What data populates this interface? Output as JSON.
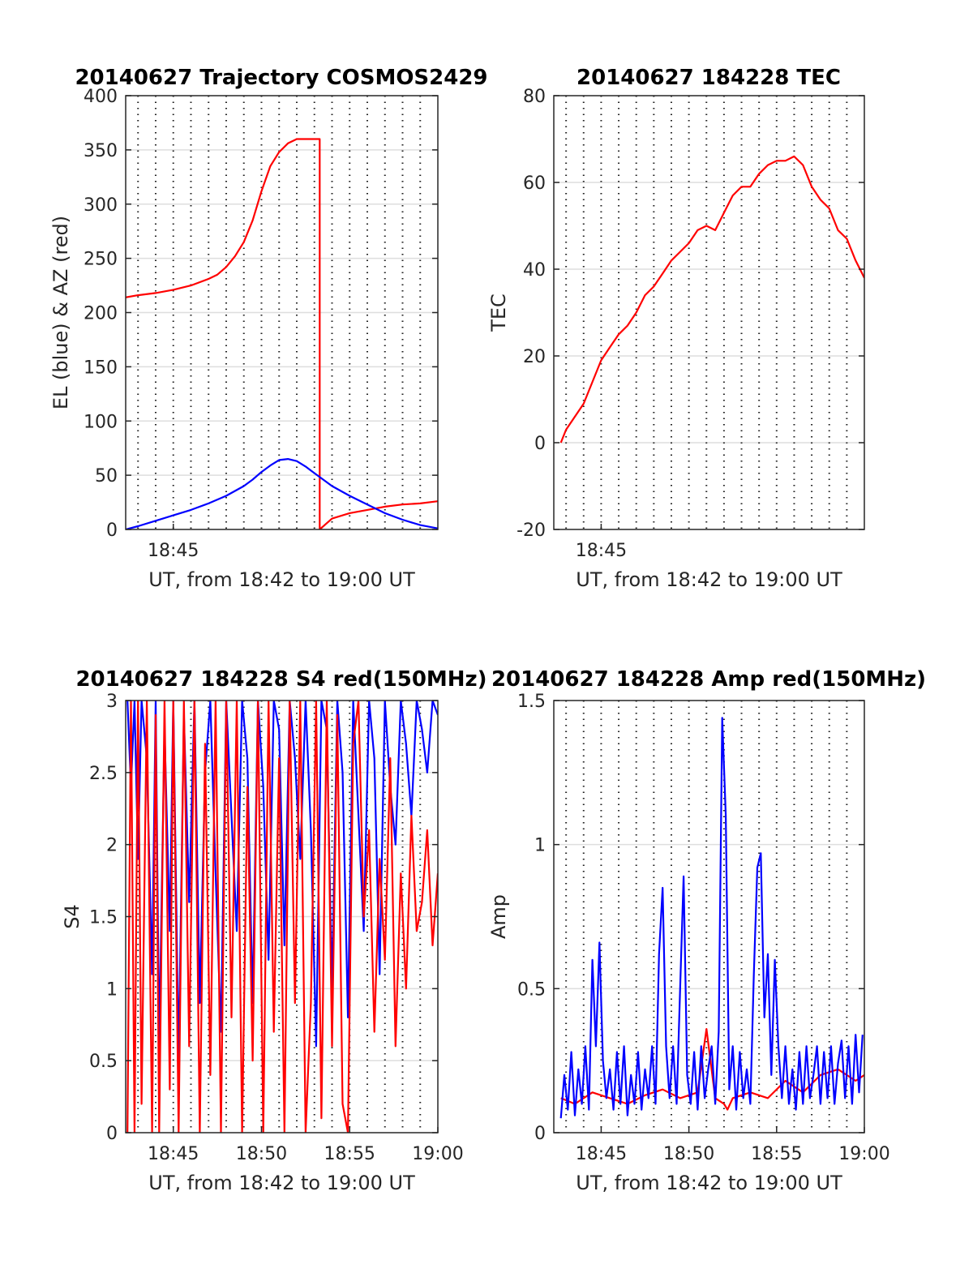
{
  "chart_data": [
    {
      "type": "line",
      "title": "20140627 Trajectory COSMOS2429",
      "xlabel": "UT, from 18:42 to 19:00 UT",
      "ylabel": "EL (blue) & AZ (red)",
      "xlim_minutes": [
        42.3,
        60
      ],
      "ylim": [
        0,
        400
      ],
      "yticks": [
        0,
        50,
        100,
        150,
        200,
        250,
        300,
        350,
        400
      ],
      "xticks": [
        {
          "value": 45,
          "label": "18:45"
        }
      ],
      "vgrid_minutes": [
        43,
        44,
        45,
        46,
        47,
        48,
        49,
        50,
        51,
        52,
        53,
        54,
        55,
        56,
        57,
        58,
        59
      ],
      "grid": true,
      "series": [
        {
          "color": "#ff0000",
          "x": [
            42.3,
            43,
            44,
            45,
            46,
            47,
            47.5,
            48,
            48.5,
            49,
            49.5,
            50,
            50.5,
            51,
            51.5,
            52,
            52.5,
            53,
            53.3,
            53.3,
            54,
            55,
            56,
            57,
            58,
            59,
            60
          ],
          "values": [
            214,
            216,
            218,
            221,
            225,
            231,
            235,
            242,
            252,
            265,
            285,
            312,
            335,
            348,
            356,
            360,
            360,
            360,
            360,
            0,
            10,
            15,
            18,
            21,
            23,
            24,
            26
          ]
        },
        {
          "color": "#0000ff",
          "x": [
            42.3,
            43,
            44,
            45,
            46,
            47,
            48,
            49,
            49.5,
            50,
            50.5,
            51,
            51.5,
            52,
            52.5,
            53,
            53.5,
            54,
            55,
            56,
            57,
            58,
            59,
            60
          ],
          "values": [
            0,
            3,
            8,
            13,
            18,
            24,
            31,
            40,
            46,
            53,
            59,
            64,
            65,
            63,
            58,
            52,
            46,
            40,
            31,
            23,
            15,
            9,
            4,
            1
          ]
        }
      ]
    },
    {
      "type": "line",
      "title": "20140627 184228 TEC",
      "xlabel": "UT, from 18:42 to 19:00 UT",
      "ylabel": "TEC",
      "xlim_minutes": [
        42.3,
        60
      ],
      "ylim": [
        -20,
        80
      ],
      "yticks": [
        -20,
        0,
        20,
        40,
        60,
        80
      ],
      "xticks": [
        {
          "value": 45,
          "label": "18:45"
        }
      ],
      "vgrid_minutes": [
        43,
        44,
        45,
        46,
        47,
        48,
        49,
        50,
        51,
        52,
        53,
        54,
        55,
        56,
        57,
        58,
        59
      ],
      "grid": true,
      "series": [
        {
          "color": "#ff0000",
          "x": [
            42.7,
            43,
            43.5,
            44,
            44.5,
            45,
            45.5,
            46,
            46.5,
            47,
            47.5,
            48,
            48.5,
            49,
            49.5,
            50,
            50.5,
            51,
            51.5,
            52,
            52.5,
            53,
            53.5,
            54,
            54.5,
            55,
            55.5,
            56,
            56.5,
            57,
            57.5,
            58,
            58.5,
            59,
            59.5,
            60
          ],
          "values": [
            0,
            3,
            6,
            9,
            14,
            19,
            22,
            25,
            27,
            30,
            34,
            36,
            39,
            42,
            44,
            46,
            49,
            50,
            49,
            53,
            57,
            59,
            59,
            62,
            64,
            65,
            65,
            66,
            64,
            59,
            56,
            54,
            49,
            47,
            42,
            38
          ]
        }
      ]
    },
    {
      "type": "line",
      "title": "20140627 184228 S4 red(150MHz)",
      "xlabel": "UT, from 18:42 to 19:00 UT",
      "ylabel": "S4",
      "xlim_minutes": [
        42.3,
        60
      ],
      "ylim": [
        0,
        3
      ],
      "yticks": [
        0,
        0.5,
        1,
        1.5,
        2,
        2.5,
        3
      ],
      "ytick_labels": [
        "0",
        "0.5",
        "1",
        "1.5",
        "2",
        "2.5",
        "3"
      ],
      "xticks": [
        {
          "value": 45,
          "label": "18:45"
        },
        {
          "value": 50,
          "label": "18:50"
        },
        {
          "value": 55,
          "label": "18:55"
        },
        {
          "value": 60,
          "label": "19:00"
        }
      ],
      "vgrid_minutes": [
        43,
        44,
        45,
        46,
        47,
        48,
        49,
        50,
        51,
        52,
        53,
        54,
        55,
        56,
        57,
        58,
        59
      ],
      "grid": true,
      "series": [
        {
          "color": "#0000ff",
          "x": [
            42.4,
            42.6,
            42.8,
            43.0,
            43.2,
            43.5,
            43.8,
            44.0,
            44.2,
            44.5,
            44.8,
            45.0,
            45.3,
            45.6,
            45.9,
            46.2,
            46.5,
            46.8,
            47.1,
            47.4,
            47.7,
            48.0,
            48.3,
            48.6,
            48.9,
            49.2,
            49.5,
            49.8,
            50.1,
            50.4,
            50.7,
            51.0,
            51.3,
            51.6,
            51.9,
            52.2,
            52.5,
            52.8,
            53.1,
            53.4,
            53.7,
            54.0,
            54.3,
            54.6,
            54.9,
            55.2,
            55.5,
            55.8,
            56.1,
            56.4,
            56.7,
            57.0,
            57.3,
            57.6,
            57.9,
            58.2,
            58.5,
            58.8,
            59.1,
            59.4,
            59.7,
            60.0
          ],
          "values": [
            3,
            2.4,
            3,
            1.9,
            3,
            2.6,
            1.1,
            3,
            0.6,
            2.8,
            1.4,
            3,
            0.5,
            2.9,
            1.6,
            3,
            0.9,
            2.5,
            3,
            1.8,
            0.7,
            3,
            2.2,
            1.4,
            3,
            2.6,
            0.9,
            3,
            2.4,
            1.2,
            3,
            2.8,
            1.3,
            3,
            2.6,
            1.9,
            3,
            2.1,
            0.6,
            3,
            2.8,
            1.0,
            3,
            2.5,
            0.8,
            3,
            2.2,
            1.4,
            3,
            2.6,
            1.1,
            3,
            2.4,
            2.0,
            3,
            2.7,
            2.2,
            3,
            2.8,
            2.5,
            3,
            2.9
          ]
        },
        {
          "color": "#ff0000",
          "x": [
            42.4,
            42.6,
            42.8,
            43.0,
            43.2,
            43.5,
            43.8,
            44.0,
            44.2,
            44.5,
            44.8,
            45.0,
            45.3,
            45.6,
            45.9,
            46.2,
            46.5,
            46.8,
            47.1,
            47.4,
            47.7,
            48.0,
            48.3,
            48.6,
            48.9,
            49.2,
            49.5,
            49.8,
            50.1,
            50.4,
            50.7,
            51.0,
            51.3,
            51.6,
            51.9,
            52.2,
            52.5,
            52.8,
            53.1,
            53.4,
            53.7,
            54.0,
            54.3,
            54.6,
            54.9,
            55.2,
            55.5,
            55.8,
            56.1,
            56.4,
            56.7,
            57.0,
            57.3,
            57.6,
            57.9,
            58.2,
            58.5,
            58.8,
            59.1,
            59.4,
            59.7,
            60.0
          ],
          "values": [
            0,
            3,
            0,
            3,
            0.2,
            3,
            0,
            2.9,
            0,
            3,
            0.3,
            3,
            0,
            3,
            0.6,
            3,
            0,
            2.7,
            0.4,
            3,
            0,
            3,
            0.8,
            3,
            0,
            2.4,
            0.5,
            3,
            0,
            3,
            0.7,
            2.6,
            0,
            3,
            0.9,
            3,
            0,
            0.9,
            3,
            0.1,
            3,
            0.6,
            2.9,
            0.2,
            0,
            2.7,
            3,
            1.5,
            2.1,
            0.7,
            1.9,
            1.2,
            2.6,
            0.6,
            1.8,
            1.0,
            2.2,
            1.4,
            1.6,
            2.1,
            1.3,
            1.8
          ]
        }
      ]
    },
    {
      "type": "line",
      "title": "20140627 184228 Amp red(150MHz)",
      "xlabel": "UT, from 18:42 to 19:00 UT",
      "ylabel": "Amp",
      "xlim_minutes": [
        42.3,
        60
      ],
      "ylim": [
        0,
        1.5
      ],
      "yticks": [
        0,
        0.5,
        1,
        1.5
      ],
      "ytick_labels": [
        "0",
        "0.5",
        "1",
        "1.5"
      ],
      "xticks": [
        {
          "value": 45,
          "label": "18:45"
        },
        {
          "value": 50,
          "label": "18:50"
        },
        {
          "value": 55,
          "label": "18:55"
        },
        {
          "value": 60,
          "label": "19:00"
        }
      ],
      "vgrid_minutes": [
        43,
        44,
        45,
        46,
        47,
        48,
        49,
        50,
        51,
        52,
        53,
        54,
        55,
        56,
        57,
        58,
        59
      ],
      "grid": true,
      "series": [
        {
          "color": "#ff0000",
          "x": [
            42.7,
            43.5,
            44.5,
            45.5,
            46.5,
            47.5,
            48.5,
            49.5,
            50.5,
            51.0,
            51.5,
            52.0,
            52.2,
            52.5,
            53.5,
            54.5,
            55.5,
            56.5,
            57.5,
            58.5,
            59.5,
            60.0
          ],
          "values": [
            0.12,
            0.1,
            0.14,
            0.12,
            0.1,
            0.13,
            0.15,
            0.12,
            0.14,
            0.36,
            0.12,
            0.1,
            0.08,
            0.12,
            0.14,
            0.12,
            0.18,
            0.14,
            0.2,
            0.22,
            0.18,
            0.2
          ]
        },
        {
          "color": "#0000ff",
          "x": [
            42.7,
            42.9,
            43.1,
            43.3,
            43.5,
            43.7,
            43.9,
            44.1,
            44.3,
            44.5,
            44.7,
            44.9,
            45.1,
            45.3,
            45.5,
            45.7,
            45.9,
            46.1,
            46.3,
            46.5,
            46.7,
            46.9,
            47.1,
            47.3,
            47.5,
            47.7,
            47.9,
            48.1,
            48.3,
            48.5,
            48.7,
            48.9,
            49.1,
            49.3,
            49.5,
            49.7,
            49.9,
            50.1,
            50.3,
            50.5,
            50.7,
            50.9,
            51.1,
            51.3,
            51.5,
            51.7,
            51.9,
            52.1,
            52.3,
            52.5,
            52.7,
            52.9,
            53.1,
            53.3,
            53.5,
            53.7,
            53.9,
            54.1,
            54.3,
            54.5,
            54.7,
            54.9,
            55.1,
            55.3,
            55.5,
            55.7,
            55.9,
            56.1,
            56.3,
            56.5,
            56.7,
            56.9,
            57.1,
            57.3,
            57.5,
            57.7,
            57.9,
            58.1,
            58.3,
            58.5,
            58.7,
            58.9,
            59.1,
            59.3,
            59.5,
            59.7,
            59.9
          ],
          "values": [
            0.05,
            0.2,
            0.08,
            0.28,
            0.06,
            0.22,
            0.1,
            0.3,
            0.08,
            0.6,
            0.3,
            0.66,
            0.25,
            0.12,
            0.22,
            0.08,
            0.28,
            0.1,
            0.3,
            0.06,
            0.2,
            0.1,
            0.28,
            0.08,
            0.22,
            0.12,
            0.3,
            0.1,
            0.62,
            0.85,
            0.3,
            0.12,
            0.3,
            0.1,
            0.5,
            0.89,
            0.2,
            0.1,
            0.28,
            0.08,
            0.3,
            0.12,
            0.22,
            0.3,
            0.1,
            0.35,
            1.44,
            1.1,
            0.15,
            0.3,
            0.08,
            0.28,
            0.12,
            0.22,
            0.1,
            0.55,
            0.92,
            0.97,
            0.4,
            0.62,
            0.2,
            0.6,
            0.3,
            0.12,
            0.3,
            0.1,
            0.22,
            0.08,
            0.28,
            0.1,
            0.3,
            0.12,
            0.2,
            0.3,
            0.1,
            0.28,
            0.12,
            0.3,
            0.1,
            0.24,
            0.32,
            0.12,
            0.3,
            0.1,
            0.34,
            0.14,
            0.34
          ]
        }
      ]
    }
  ]
}
